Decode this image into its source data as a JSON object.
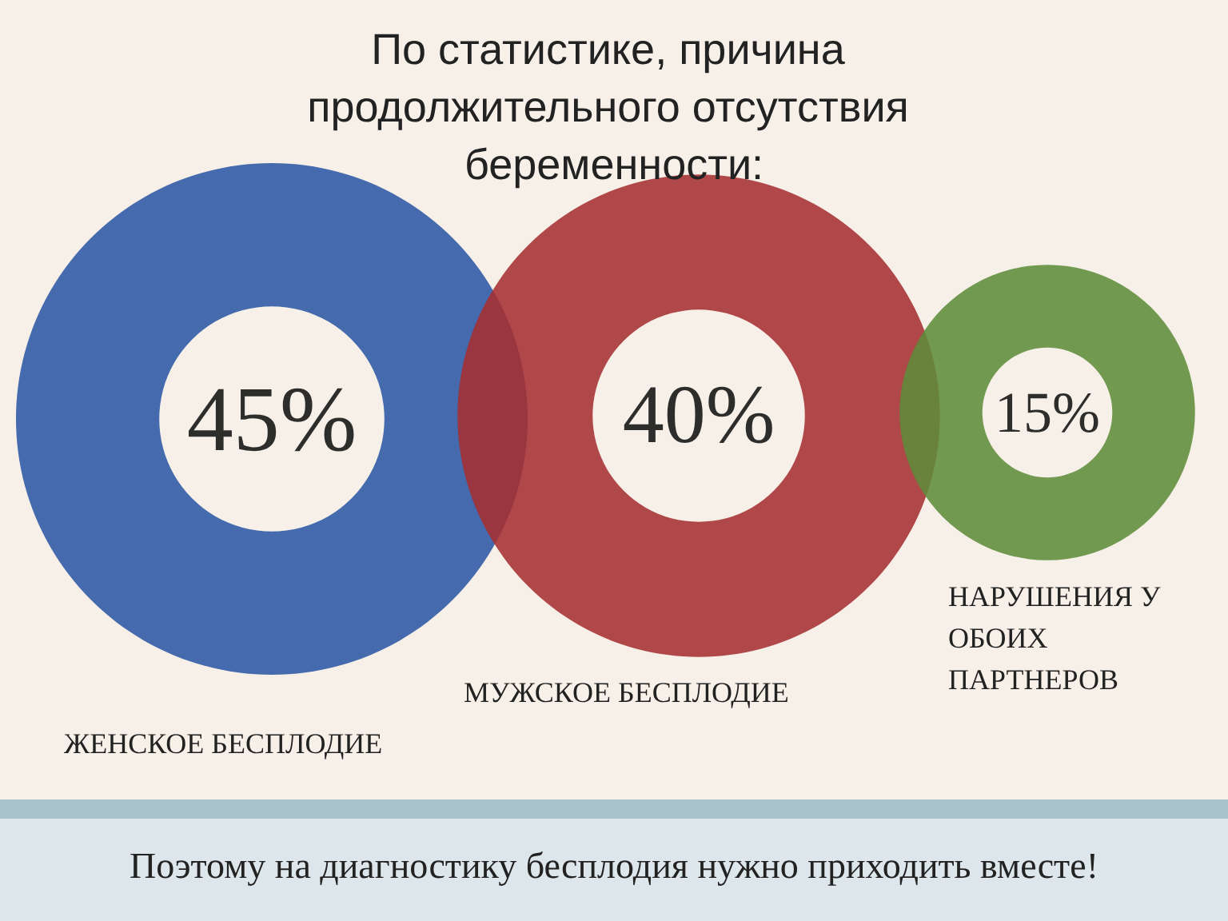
{
  "chart_data": {
    "type": "other",
    "title": "По статистике, причина продолжительного отсутствия беременности:",
    "categories": [
      "ЖЕНСКОЕ БЕСПЛОДИЕ",
      "МУЖСКОЕ БЕСПЛОДИЕ",
      "НАРУШЕНИЯ У ОБОИХ ПАРТНЕРОВ"
    ],
    "values": [
      45,
      40,
      15
    ],
    "value_labels": [
      "45%",
      "40%",
      "15%"
    ],
    "colors": [
      "#2d57a5",
      "#a62f31",
      "#5e8c3a"
    ],
    "annotations": [
      "Поэтому на диагностику бесплодия нужно приходить вместе!"
    ]
  }
}
